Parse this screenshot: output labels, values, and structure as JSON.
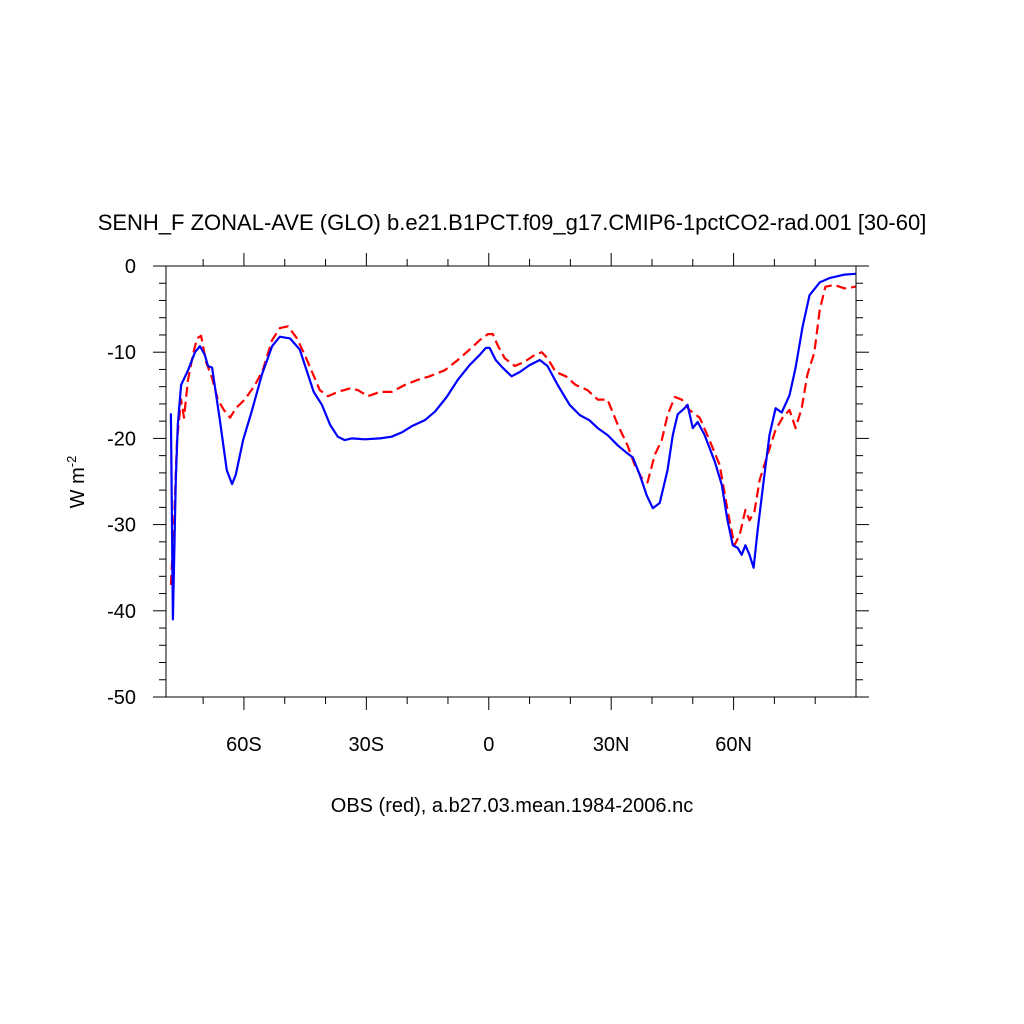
{
  "chart_data": {
    "type": "line",
    "title": "SENH_F ZONAL-AVE (GLO) b.e21.B1PCT.f09_g17.CMIP6-1pctCO2-rad.001 [30-60]",
    "xlabel": "OBS (red), a.b27.03.mean.1984-2006.nc",
    "ylabel": "W m",
    "ylabel_exponent": "-2",
    "xlim": [
      -79.1,
      90
    ],
    "ylim": [
      -50,
      0
    ],
    "xticks": [
      {
        "value": -60,
        "label": "60S"
      },
      {
        "value": -30,
        "label": "30S"
      },
      0,
      {
        "value": 30,
        "label": "30N"
      },
      {
        "value": 60,
        "label": "60N"
      }
    ],
    "xminor_ticks": [
      -70,
      -50,
      -40,
      -20,
      -10,
      10,
      20,
      40,
      50,
      70,
      80
    ],
    "yticks": [
      -50,
      -40,
      -30,
      -20,
      -10,
      0
    ],
    "yminor_ticks": [
      -48,
      -46,
      -44,
      -42,
      -38,
      -36,
      -34,
      -32,
      -28,
      -26,
      -24,
      -22,
      -18,
      -16,
      -14,
      -12,
      -8,
      -6,
      -4,
      -2
    ],
    "grid": false,
    "series": [
      {
        "color": "#0000ff",
        "dash": false,
        "x": [
          -77.9,
          -77.4,
          -76.7,
          -76.2,
          -75.4,
          -73.7,
          -72,
          -70.8,
          -69.6,
          -68.8,
          -67.8,
          -65.9,
          -64.2,
          -62.9,
          -62,
          -60.2,
          -58,
          -55.6,
          -53.1,
          -51.2,
          -48.7,
          -46.3,
          -44.3,
          -42.9,
          -40.9,
          -38.9,
          -37,
          -35.3,
          -33.6,
          -30.4,
          -26.7,
          -23.8,
          -21.3,
          -18.9,
          -15.7,
          -13.2,
          -10.3,
          -7.6,
          -4.7,
          -2.2,
          -0.7,
          0.2,
          1.7,
          3.4,
          5.6,
          7.6,
          10,
          12.5,
          14.4,
          16.9,
          19.8,
          22.3,
          24.7,
          26.7,
          29.1,
          31.6,
          33.6,
          35.3,
          37,
          38.7,
          40.2,
          41.9,
          43.8,
          45.1,
          46.3,
          48,
          48.7,
          50,
          51.2,
          52.9,
          55.4,
          57.1,
          58.5,
          59.8,
          61,
          62,
          62.9,
          63.9,
          64.9,
          65.9,
          67.4,
          68.8,
          70.3,
          71.8,
          73.7,
          75.2,
          76.9,
          78.6,
          81.1,
          83.5,
          87.2,
          89.9
        ],
        "values": [
          -17.1,
          -41,
          -24.8,
          -18.4,
          -13.8,
          -12.1,
          -10,
          -9.3,
          -10.3,
          -11.6,
          -11.8,
          -17.9,
          -23.7,
          -25.3,
          -24.2,
          -20.2,
          -16.7,
          -12.6,
          -9.3,
          -8.2,
          -8.4,
          -9.7,
          -12.6,
          -14.6,
          -16.1,
          -18.4,
          -19.8,
          -20.2,
          -20,
          -20.1,
          -20,
          -19.8,
          -19.3,
          -18.6,
          -17.9,
          -16.9,
          -15.2,
          -13.2,
          -11.5,
          -10.3,
          -9.5,
          -9.5,
          -10.9,
          -11.8,
          -12.8,
          -12.3,
          -11.5,
          -10.9,
          -11.6,
          -13.8,
          -16.1,
          -17.3,
          -17.9,
          -18.8,
          -19.6,
          -20.8,
          -21.6,
          -22.2,
          -24.2,
          -26.6,
          -28.1,
          -27.5,
          -23.7,
          -19.6,
          -17.2,
          -16.5,
          -16.1,
          -18.8,
          -18.1,
          -19.6,
          -22.7,
          -25.4,
          -29.5,
          -32.4,
          -32.7,
          -33.5,
          -32.4,
          -33.5,
          -35,
          -30.6,
          -24.8,
          -19.6,
          -16.5,
          -17,
          -15,
          -11.8,
          -7.1,
          -3.4,
          -1.9,
          -1.4,
          -1,
          -0.9
        ]
      },
      {
        "color": "#ff0000",
        "dash": true,
        "x": [
          -77.9,
          -77.1,
          -76.4,
          -75.4,
          -74.7,
          -73.7,
          -72.5,
          -71.5,
          -70.5,
          -69.3,
          -67.8,
          -66.4,
          -64.9,
          -63.4,
          -62,
          -59.8,
          -57.3,
          -55.4,
          -53.1,
          -51.2,
          -49.2,
          -47,
          -45.1,
          -43.3,
          -41.4,
          -39.4,
          -37,
          -34,
          -32.1,
          -29.6,
          -26.7,
          -23.8,
          -20.6,
          -17.4,
          -14.5,
          -10.8,
          -7.6,
          -4.7,
          -2.2,
          -0.2,
          1,
          2.2,
          3.9,
          6.4,
          8.8,
          11.3,
          13,
          14.4,
          16.4,
          18.9,
          21.3,
          24.2,
          26.7,
          29.1,
          31.6,
          34,
          35.8,
          37.5,
          38.9,
          40.7,
          42.4,
          43.8,
          45.6,
          47.3,
          49.2,
          51.7,
          54.1,
          56.6,
          58.5,
          60.2,
          61.5,
          62.9,
          63.9,
          65.1,
          66.4,
          68.3,
          70.3,
          72,
          73.7,
          75.2,
          76.7,
          78.1,
          79.8,
          81.1,
          82.5,
          84.7,
          87.2,
          89.9
        ],
        "values": [
          -37,
          -29.5,
          -20.2,
          -15.5,
          -17.6,
          -13.2,
          -10.3,
          -8.4,
          -8.1,
          -11.1,
          -13,
          -15.5,
          -16.7,
          -17.6,
          -16.5,
          -15.5,
          -13.8,
          -12.1,
          -8.6,
          -7.2,
          -7,
          -8.4,
          -10.3,
          -12.3,
          -14.4,
          -15.1,
          -14.6,
          -14.2,
          -14.4,
          -15.1,
          -14.6,
          -14.6,
          -13.8,
          -13.2,
          -12.8,
          -12.1,
          -10.9,
          -9.7,
          -8.6,
          -7.9,
          -7.9,
          -9.2,
          -10.7,
          -11.6,
          -11.1,
          -10.3,
          -10,
          -10.7,
          -12.3,
          -12.8,
          -13.8,
          -14.4,
          -15.5,
          -15.5,
          -18.4,
          -20.8,
          -23.1,
          -24.6,
          -25.1,
          -21.9,
          -20.2,
          -17.3,
          -15.2,
          -15.5,
          -16.7,
          -17.6,
          -20.2,
          -23.1,
          -28.3,
          -32.4,
          -31.2,
          -28.3,
          -29.5,
          -28.5,
          -24.8,
          -21.9,
          -19,
          -17.6,
          -16.7,
          -18.8,
          -16.5,
          -12.6,
          -10,
          -5.1,
          -2.4,
          -2.2,
          -2.6,
          -2.4
        ]
      }
    ]
  }
}
